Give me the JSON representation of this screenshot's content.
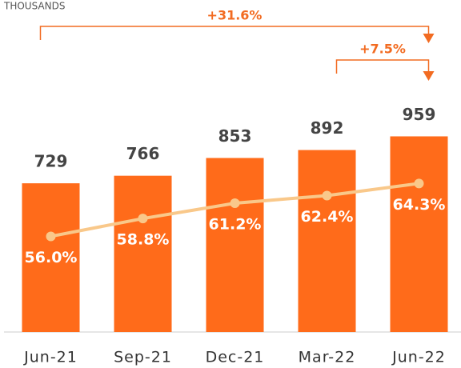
{
  "chart_data": {
    "type": "bar",
    "y_label": "THOUSANDS",
    "categories": [
      "Jun-21",
      "Sep-21",
      "Dec-21",
      "Mar-22",
      "Jun-22"
    ],
    "color": "#ff6b1a",
    "values": [
      729,
      766,
      853,
      892,
      959
    ],
    "ylim": [
      0,
      1000
    ],
    "line": {
      "color": "#f9c88a",
      "axis": "y2",
      "values": [
        56.0,
        58.8,
        61.2,
        62.4,
        64.3
      ],
      "value_labels": [
        "56.0%",
        "58.8%",
        "61.2%",
        "62.4%",
        "64.3%"
      ]
    },
    "y2lim": [
      41,
      73
    ],
    "annotations": [
      {
        "text": "+31.6%",
        "from": "Jun-21",
        "to": "Jun-22"
      },
      {
        "text": "+7.5%",
        "from": "Mar-22",
        "to": "Jun-22"
      }
    ],
    "annotation_color": "#f26b21"
  }
}
